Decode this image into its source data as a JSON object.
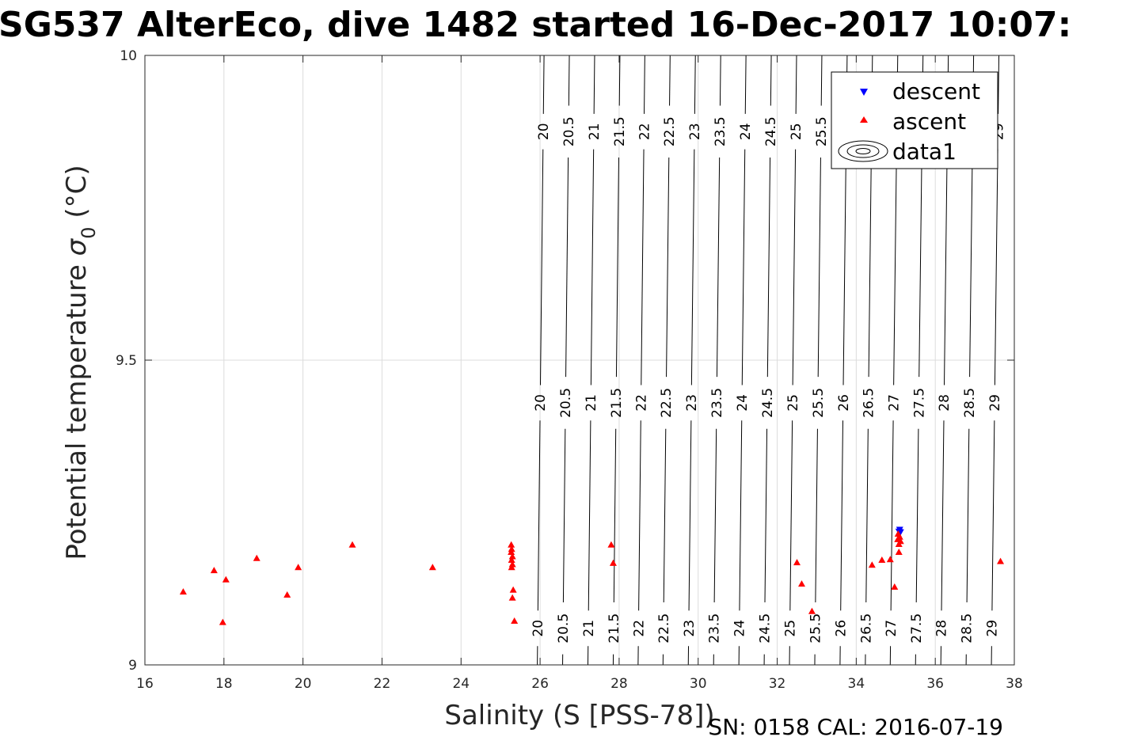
{
  "chart_data": {
    "type": "scatter",
    "title": "SG537 AlterEco, dive 1482 started 16-Dec-2017 10:07:",
    "xlabel": "Salinity (S [PSS-78])",
    "ylabel_main": "Potential temperature ",
    "ylabel_sigma": "σ",
    "ylabel_sub": "0",
    "ylabel_unit": " (°C)",
    "xlim": [
      16,
      38
    ],
    "ylim": [
      9,
      10
    ],
    "x_ticks": [
      "16",
      "18",
      "20",
      "22",
      "24",
      "26",
      "28",
      "30",
      "32",
      "34",
      "36",
      "38"
    ],
    "y_ticks": [
      "9",
      "9.5",
      "10"
    ],
    "grid": true,
    "legend_position": "top-right",
    "footer": "SN: 0158  CAL: 2016-07-19",
    "colors": {
      "descent": "#0000ff",
      "ascent": "#ff0000",
      "contour": "#000000",
      "grid": "#dcdcdc"
    },
    "series": [
      {
        "name": "descent",
        "marker": "triangle-down",
        "color": "#0000ff",
        "points": [
          [
            35.1,
            9.222
          ],
          [
            35.08,
            9.219
          ],
          [
            35.12,
            9.218
          ]
        ]
      },
      {
        "name": "ascent",
        "marker": "triangle-up",
        "color": "#ff0000",
        "points": [
          [
            16.97,
            9.12
          ],
          [
            17.75,
            9.155
          ],
          [
            18.05,
            9.14
          ],
          [
            17.97,
            9.07
          ],
          [
            18.83,
            9.175
          ],
          [
            19.6,
            9.115
          ],
          [
            19.88,
            9.16
          ],
          [
            21.25,
            9.197
          ],
          [
            23.28,
            9.16
          ],
          [
            25.27,
            9.197
          ],
          [
            25.28,
            9.19
          ],
          [
            25.27,
            9.185
          ],
          [
            25.3,
            9.178
          ],
          [
            25.28,
            9.172
          ],
          [
            25.3,
            9.165
          ],
          [
            25.28,
            9.16
          ],
          [
            25.32,
            9.123
          ],
          [
            25.3,
            9.11
          ],
          [
            25.35,
            9.072
          ],
          [
            27.8,
            9.197
          ],
          [
            27.85,
            9.167
          ],
          [
            32.5,
            9.168
          ],
          [
            32.62,
            9.133
          ],
          [
            32.88,
            9.088
          ],
          [
            34.4,
            9.164
          ],
          [
            34.65,
            9.172
          ],
          [
            34.86,
            9.173
          ],
          [
            34.97,
            9.128
          ],
          [
            35.06,
            9.215
          ],
          [
            35.1,
            9.21
          ],
          [
            35.05,
            9.206
          ],
          [
            35.12,
            9.203
          ],
          [
            35.08,
            9.198
          ],
          [
            35.08,
            9.185
          ],
          [
            37.65,
            9.17
          ]
        ]
      },
      {
        "name": "data1",
        "type": "contour",
        "levels": [
          "20",
          "20.5",
          "21",
          "21.5",
          "22",
          "22.5",
          "23",
          "23.5",
          "24",
          "24.5",
          "25",
          "25.5",
          "26",
          "26.5",
          "27",
          "27.5",
          "28",
          "28.5",
          "29"
        ]
      }
    ],
    "contours": [
      {
        "label": "20",
        "s10": 26.1,
        "s9": 25.93
      },
      {
        "label": "20.5",
        "s10": 26.74,
        "s9": 26.57
      },
      {
        "label": "21",
        "s10": 27.38,
        "s9": 27.21
      },
      {
        "label": "21.5",
        "s10": 28.02,
        "s9": 27.85
      },
      {
        "label": "22",
        "s10": 28.65,
        "s9": 28.48
      },
      {
        "label": "22.5",
        "s10": 29.29,
        "s9": 29.11
      },
      {
        "label": "23",
        "s10": 29.93,
        "s9": 29.75
      },
      {
        "label": "23.5",
        "s10": 30.57,
        "s9": 30.39
      },
      {
        "label": "24",
        "s10": 31.21,
        "s9": 31.03
      },
      {
        "label": "24.5",
        "s10": 31.85,
        "s9": 31.67
      },
      {
        "label": "25",
        "s10": 32.49,
        "s9": 32.31
      },
      {
        "label": "25.5",
        "s10": 33.13,
        "s9": 32.95
      },
      {
        "label": "26",
        "s10": 33.77,
        "s9": 33.59
      },
      {
        "label": "26.5",
        "s10": 34.41,
        "s9": 34.23
      },
      {
        "label": "27",
        "s10": 35.05,
        "s9": 34.86
      },
      {
        "label": "27.5",
        "s10": 35.69,
        "s9": 35.5
      },
      {
        "label": "28",
        "s10": 36.33,
        "s9": 36.14
      },
      {
        "label": "28.5",
        "s10": 36.97,
        "s9": 36.78
      },
      {
        "label": "29",
        "s10": 37.61,
        "s9": 37.42
      }
    ],
    "contour_label_rows_theta": [
      9.875,
      9.43,
      9.06
    ]
  }
}
